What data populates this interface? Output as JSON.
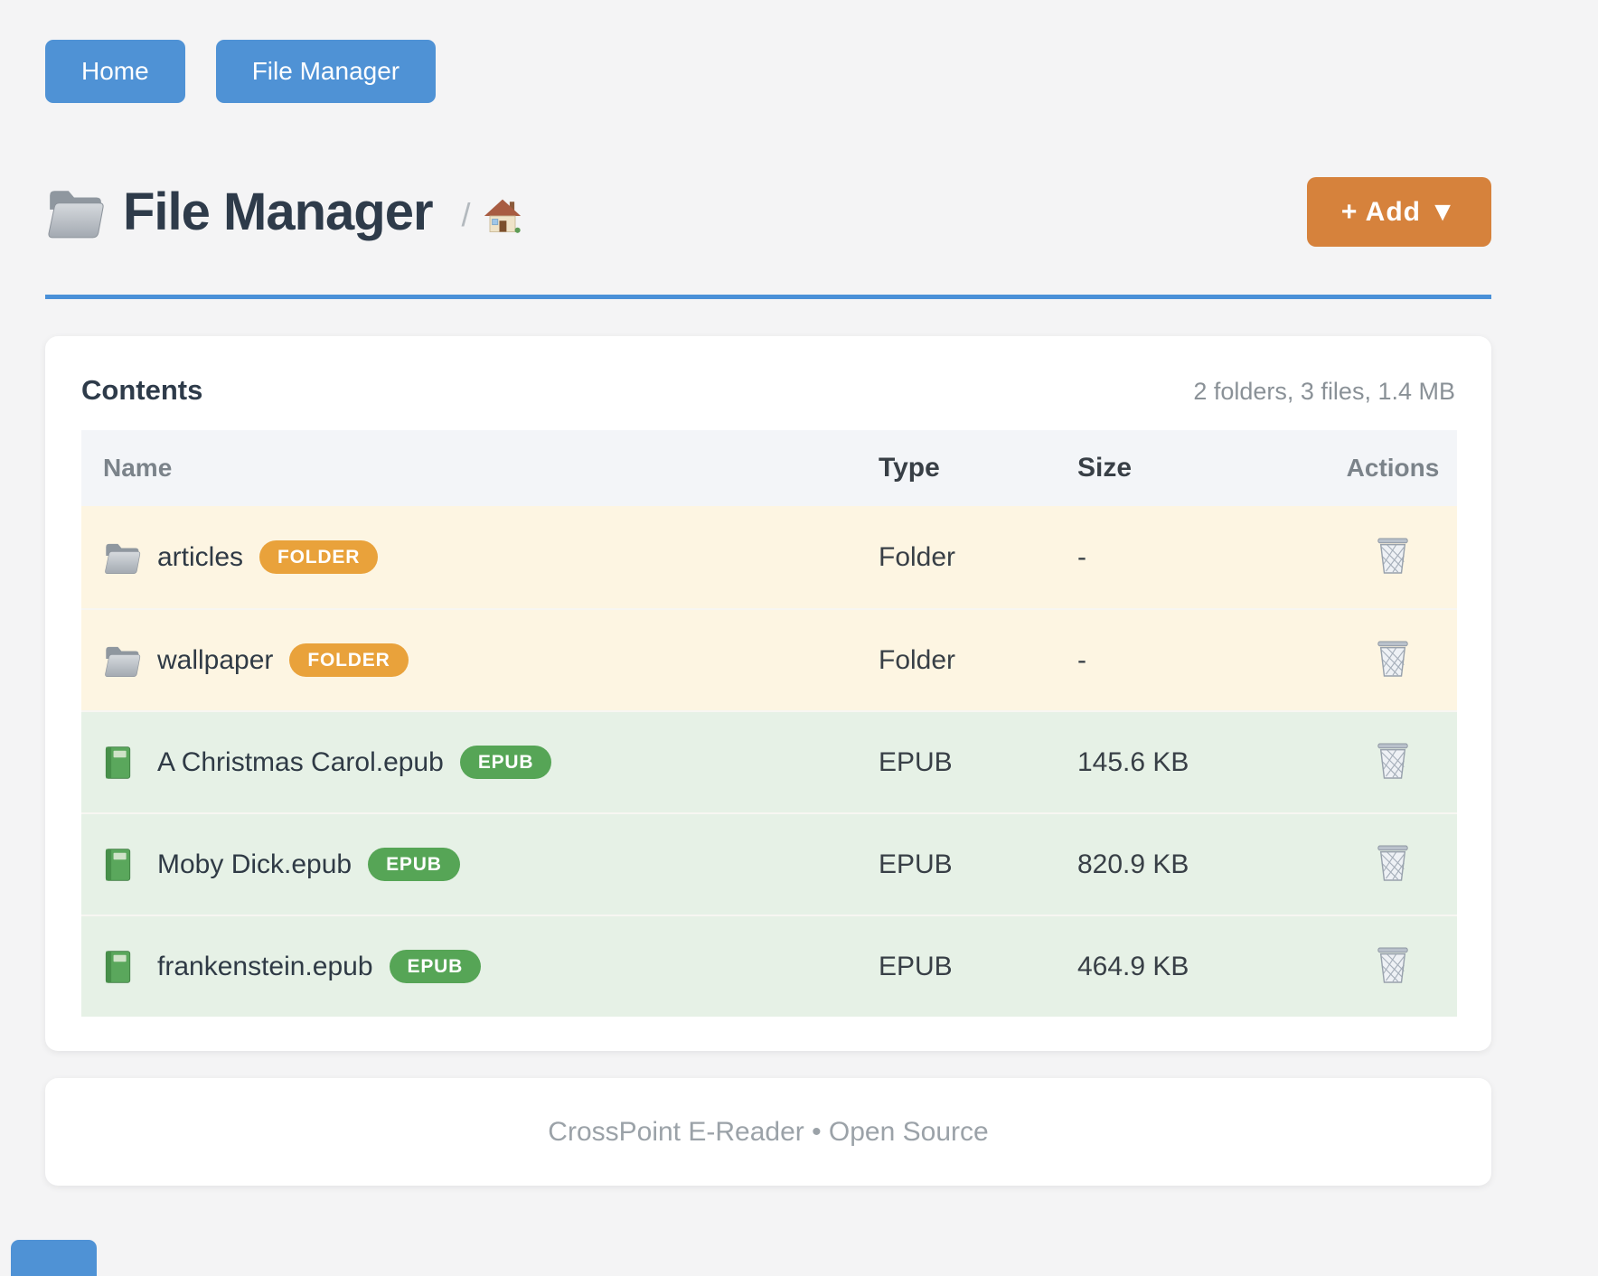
{
  "colors": {
    "primary_blue": "#4f92d5",
    "divider_blue": "#4a90d8",
    "add_orange": "#d6823c",
    "folder_badge_orange": "#e9a23b",
    "epub_badge_green": "#56a556",
    "folder_row_bg": "#fdf5e2",
    "epub_row_bg": "#e6f1e6"
  },
  "nav": {
    "home_label": "Home",
    "file_manager_label": "File Manager"
  },
  "header": {
    "title_icon": "folder-icon",
    "title": "File Manager",
    "breadcrumb_separator": "/",
    "breadcrumb_home_icon": "home-icon",
    "add_button_label": "+ Add ▼"
  },
  "contents": {
    "heading": "Contents",
    "summary": "2 folders, 3 files, 1.4 MB",
    "table": {
      "columns": [
        "Name",
        "Type",
        "Size",
        "Actions"
      ],
      "rows": [
        {
          "name": "articles",
          "badge": "FOLDER",
          "type": "Folder",
          "size": "-",
          "kind": "folder",
          "icon": "folder-icon",
          "action_icon": "trash-icon"
        },
        {
          "name": "wallpaper",
          "badge": "FOLDER",
          "type": "Folder",
          "size": "-",
          "kind": "folder",
          "icon": "folder-icon",
          "action_icon": "trash-icon"
        },
        {
          "name": "A Christmas Carol.epub",
          "badge": "EPUB",
          "type": "EPUB",
          "size": "145.6 KB",
          "kind": "epub",
          "icon": "book-icon",
          "action_icon": "trash-icon"
        },
        {
          "name": "Moby Dick.epub",
          "badge": "EPUB",
          "type": "EPUB",
          "size": "820.9 KB",
          "kind": "epub",
          "icon": "book-icon",
          "action_icon": "trash-icon"
        },
        {
          "name": "frankenstein.epub",
          "badge": "EPUB",
          "type": "EPUB",
          "size": "464.9 KB",
          "kind": "epub",
          "icon": "book-icon",
          "action_icon": "trash-icon"
        }
      ]
    }
  },
  "footer": {
    "text": "CrossPoint E-Reader • Open Source"
  }
}
